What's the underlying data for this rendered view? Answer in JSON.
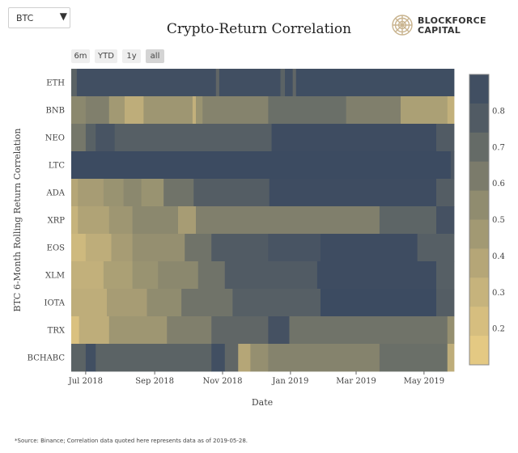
{
  "selector": {
    "value": "BTC",
    "caret": "▼"
  },
  "logo": {
    "line1": "BLOCKFORCE",
    "line2": "CAPITAL"
  },
  "range_buttons": [
    {
      "label": "6m",
      "active": false
    },
    {
      "label": "YTD",
      "active": false
    },
    {
      "label": "1y",
      "active": false
    },
    {
      "label": "all",
      "active": true
    }
  ],
  "footnote": "*Source: Binance; Correlation data quoted here represents data as of 2019-05-28.",
  "chart_data": {
    "type": "heatmap",
    "title": "Crypto-Return Correlation",
    "xlabel": "Date",
    "ylabel": "BTC 6-Month Rolling Return Correlation",
    "x_range": [
      "2018-06-18",
      "2019-05-28"
    ],
    "x_ticks": [
      {
        "date": "2018-07-01",
        "label": "Jul 2018"
      },
      {
        "date": "2018-09-01",
        "label": "Sep 2018"
      },
      {
        "date": "2018-11-01",
        "label": "Nov 2018"
      },
      {
        "date": "2019-01-01",
        "label": "Jan 2019"
      },
      {
        "date": "2019-03-01",
        "label": "Mar 2019"
      },
      {
        "date": "2019-05-01",
        "label": "May 2019"
      }
    ],
    "colorscale": {
      "min": 0.1,
      "max": 0.9,
      "ticks": [
        0.2,
        0.3,
        0.4,
        0.5,
        0.6,
        0.7,
        0.8
      ],
      "colors": [
        "#eacf86",
        "#dcc280",
        "#cbb77d",
        "#b8a878",
        "#a39a73",
        "#8f8b6f",
        "#77786a",
        "#5f6666",
        "#4a5563",
        "#3a4a61"
      ]
    },
    "rows": [
      {
        "name": "ETH",
        "segments": [
          {
            "start": "2018-06-18",
            "end": "2018-06-23",
            "value": 0.74
          },
          {
            "start": "2018-06-23",
            "end": "2018-10-26",
            "value": 0.86
          },
          {
            "start": "2018-10-26",
            "end": "2018-10-29",
            "value": 0.72
          },
          {
            "start": "2018-10-29",
            "end": "2018-12-23",
            "value": 0.86
          },
          {
            "start": "2018-12-23",
            "end": "2018-12-27",
            "value": 0.74
          },
          {
            "start": "2018-12-27",
            "end": "2019-01-03",
            "value": 0.86
          },
          {
            "start": "2019-01-03",
            "end": "2019-01-06",
            "value": 0.72
          },
          {
            "start": "2019-01-06",
            "end": "2019-05-28",
            "value": 0.87
          }
        ]
      },
      {
        "name": "BNB",
        "segments": [
          {
            "start": "2018-06-18",
            "end": "2018-07-01",
            "value": 0.56
          },
          {
            "start": "2018-07-01",
            "end": "2018-07-22",
            "value": 0.6
          },
          {
            "start": "2018-07-22",
            "end": "2018-08-05",
            "value": 0.46
          },
          {
            "start": "2018-08-05",
            "end": "2018-08-22",
            "value": 0.34
          },
          {
            "start": "2018-08-22",
            "end": "2018-10-05",
            "value": 0.48
          },
          {
            "start": "2018-10-05",
            "end": "2018-10-08",
            "value": 0.32
          },
          {
            "start": "2018-10-08",
            "end": "2018-10-14",
            "value": 0.5
          },
          {
            "start": "2018-10-14",
            "end": "2018-12-12",
            "value": 0.58
          },
          {
            "start": "2018-12-12",
            "end": "2019-02-20",
            "value": 0.68
          },
          {
            "start": "2019-02-20",
            "end": "2019-04-10",
            "value": 0.6
          },
          {
            "start": "2019-04-10",
            "end": "2019-05-22",
            "value": 0.42
          },
          {
            "start": "2019-05-22",
            "end": "2019-05-28",
            "value": 0.32
          }
        ]
      },
      {
        "name": "NEO",
        "segments": [
          {
            "start": "2018-06-18",
            "end": "2018-07-01",
            "value": 0.64
          },
          {
            "start": "2018-07-01",
            "end": "2018-07-10",
            "value": 0.75
          },
          {
            "start": "2018-07-10",
            "end": "2018-07-27",
            "value": 0.82
          },
          {
            "start": "2018-07-27",
            "end": "2018-10-04",
            "value": 0.76
          },
          {
            "start": "2018-10-04",
            "end": "2018-12-15",
            "value": 0.76
          },
          {
            "start": "2018-12-15",
            "end": "2019-05-12",
            "value": 0.88
          },
          {
            "start": "2019-05-12",
            "end": "2019-05-28",
            "value": 0.78
          }
        ]
      },
      {
        "name": "LTC",
        "segments": [
          {
            "start": "2018-06-18",
            "end": "2019-05-25",
            "value": 0.89
          },
          {
            "start": "2019-05-25",
            "end": "2019-05-28",
            "value": 0.8
          }
        ]
      },
      {
        "name": "ADA",
        "segments": [
          {
            "start": "2018-06-18",
            "end": "2018-06-24",
            "value": 0.38
          },
          {
            "start": "2018-06-24",
            "end": "2018-07-17",
            "value": 0.44
          },
          {
            "start": "2018-07-17",
            "end": "2018-08-04",
            "value": 0.5
          },
          {
            "start": "2018-08-04",
            "end": "2018-08-20",
            "value": 0.56
          },
          {
            "start": "2018-08-20",
            "end": "2018-09-09",
            "value": 0.5
          },
          {
            "start": "2018-09-09",
            "end": "2018-10-06",
            "value": 0.66
          },
          {
            "start": "2018-10-06",
            "end": "2018-12-13",
            "value": 0.77
          },
          {
            "start": "2018-12-13",
            "end": "2019-05-12",
            "value": 0.88
          },
          {
            "start": "2019-05-12",
            "end": "2019-05-28",
            "value": 0.77
          }
        ]
      },
      {
        "name": "XRP",
        "segments": [
          {
            "start": "2018-06-18",
            "end": "2018-06-24",
            "value": 0.3
          },
          {
            "start": "2018-06-24",
            "end": "2018-07-22",
            "value": 0.4
          },
          {
            "start": "2018-07-22",
            "end": "2018-08-12",
            "value": 0.48
          },
          {
            "start": "2018-08-12",
            "end": "2018-09-22",
            "value": 0.56
          },
          {
            "start": "2018-09-22",
            "end": "2018-10-08",
            "value": 0.44
          },
          {
            "start": "2018-10-08",
            "end": "2019-03-22",
            "value": 0.6
          },
          {
            "start": "2019-03-22",
            "end": "2019-05-12",
            "value": 0.73
          },
          {
            "start": "2019-05-12",
            "end": "2019-05-28",
            "value": 0.84
          }
        ]
      },
      {
        "name": "EOS",
        "segments": [
          {
            "start": "2018-06-18",
            "end": "2018-07-01",
            "value": 0.26
          },
          {
            "start": "2018-07-01",
            "end": "2018-07-24",
            "value": 0.34
          },
          {
            "start": "2018-07-24",
            "end": "2018-08-12",
            "value": 0.44
          },
          {
            "start": "2018-08-12",
            "end": "2018-09-28",
            "value": 0.52
          },
          {
            "start": "2018-09-28",
            "end": "2018-10-22",
            "value": 0.66
          },
          {
            "start": "2018-10-22",
            "end": "2018-12-12",
            "value": 0.78
          },
          {
            "start": "2018-12-12",
            "end": "2019-01-28",
            "value": 0.82
          },
          {
            "start": "2019-01-28",
            "end": "2019-04-25",
            "value": 0.88
          },
          {
            "start": "2019-04-25",
            "end": "2019-05-28",
            "value": 0.76
          }
        ]
      },
      {
        "name": "XLM",
        "segments": [
          {
            "start": "2018-06-18",
            "end": "2018-07-17",
            "value": 0.32
          },
          {
            "start": "2018-07-17",
            "end": "2018-08-12",
            "value": 0.42
          },
          {
            "start": "2018-08-12",
            "end": "2018-09-04",
            "value": 0.5
          },
          {
            "start": "2018-09-04",
            "end": "2018-10-10",
            "value": 0.56
          },
          {
            "start": "2018-10-10",
            "end": "2018-11-03",
            "value": 0.66
          },
          {
            "start": "2018-11-03",
            "end": "2019-01-25",
            "value": 0.78
          },
          {
            "start": "2019-01-25",
            "end": "2019-05-12",
            "value": 0.88
          },
          {
            "start": "2019-05-12",
            "end": "2019-05-28",
            "value": 0.76
          }
        ]
      },
      {
        "name": "IOTA",
        "segments": [
          {
            "start": "2018-06-18",
            "end": "2018-07-20",
            "value": 0.34
          },
          {
            "start": "2018-07-20",
            "end": "2018-08-25",
            "value": 0.44
          },
          {
            "start": "2018-08-25",
            "end": "2018-09-25",
            "value": 0.54
          },
          {
            "start": "2018-09-25",
            "end": "2018-11-10",
            "value": 0.66
          },
          {
            "start": "2018-11-10",
            "end": "2019-01-28",
            "value": 0.76
          },
          {
            "start": "2019-01-28",
            "end": "2019-05-12",
            "value": 0.89
          },
          {
            "start": "2019-05-12",
            "end": "2019-05-28",
            "value": 0.77
          }
        ]
      },
      {
        "name": "TRX",
        "segments": [
          {
            "start": "2018-06-18",
            "end": "2018-06-25",
            "value": 0.2
          },
          {
            "start": "2018-06-25",
            "end": "2018-07-22",
            "value": 0.34
          },
          {
            "start": "2018-07-22",
            "end": "2018-09-12",
            "value": 0.48
          },
          {
            "start": "2018-09-12",
            "end": "2018-10-22",
            "value": 0.6
          },
          {
            "start": "2018-10-22",
            "end": "2018-12-12",
            "value": 0.72
          },
          {
            "start": "2018-12-12",
            "end": "2018-12-31",
            "value": 0.84
          },
          {
            "start": "2018-12-31",
            "end": "2019-05-22",
            "value": 0.66
          },
          {
            "start": "2019-05-22",
            "end": "2019-05-28",
            "value": 0.52
          }
        ]
      },
      {
        "name": "BCHABC",
        "segments": [
          {
            "start": "2018-06-18",
            "end": "2018-07-01",
            "value": 0.74
          },
          {
            "start": "2018-07-01",
            "end": "2018-07-10",
            "value": 0.86
          },
          {
            "start": "2018-07-10",
            "end": "2018-10-22",
            "value": 0.74
          },
          {
            "start": "2018-10-22",
            "end": "2018-11-03",
            "value": 0.86
          },
          {
            "start": "2018-11-03",
            "end": "2018-11-15",
            "value": 0.72
          },
          {
            "start": "2018-11-15",
            "end": "2018-11-26",
            "value": 0.38
          },
          {
            "start": "2018-11-26",
            "end": "2018-12-12",
            "value": 0.52
          },
          {
            "start": "2018-12-12",
            "end": "2019-03-22",
            "value": 0.58
          },
          {
            "start": "2019-03-22",
            "end": "2019-05-22",
            "value": 0.68
          },
          {
            "start": "2019-05-22",
            "end": "2019-05-28",
            "value": 0.34
          }
        ]
      }
    ]
  }
}
